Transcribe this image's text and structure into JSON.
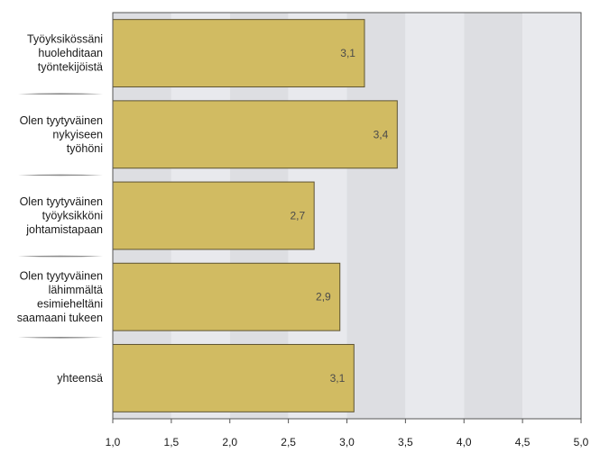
{
  "chart_data": {
    "type": "bar",
    "orientation": "horizontal",
    "categories": [
      [
        "Työyksikössäni",
        "huolehditaan",
        "työntekijöistä"
      ],
      [
        "Olen tyytyväinen",
        "nykyiseen",
        "työhöni"
      ],
      [
        "Olen tyytyväinen",
        "työyksikköni",
        "johtamistapaan"
      ],
      [
        "Olen tyytyväinen",
        "lähimmältä",
        "esimieheltäni",
        "saamaani tukeen"
      ],
      [
        "yhteensä"
      ]
    ],
    "values": [
      3.15,
      3.43,
      2.72,
      2.94,
      3.06
    ],
    "value_labels": [
      "3,1",
      "3,4",
      "2,7",
      "2,9",
      "3,1"
    ],
    "xlim": [
      1.0,
      5.0
    ],
    "xticks": [
      1.0,
      1.5,
      2.0,
      2.5,
      3.0,
      3.5,
      4.0,
      4.5,
      5.0
    ],
    "xtick_labels": [
      "1,0",
      "1,5",
      "2,0",
      "2,5",
      "3,0",
      "3,5",
      "4,0",
      "4,5",
      "5,0"
    ],
    "title": "",
    "xlabel": "",
    "ylabel": "",
    "legend": "none",
    "colors": {
      "bar_fill": "#d1bb62",
      "bar_stroke": "#5e5432",
      "band_dark": "#dddee2",
      "band_light": "#e8e9ed",
      "axis": "#555555"
    }
  }
}
